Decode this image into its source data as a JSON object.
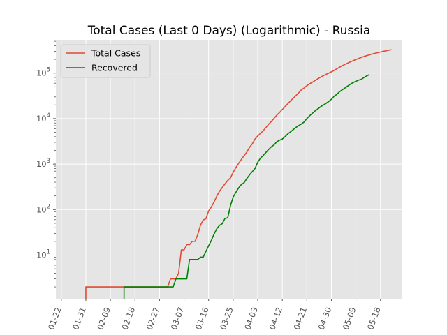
{
  "chart_data": {
    "type": "line",
    "title": "Total Cases (Last 0 Days) (Logarithmic) - Russia",
    "xlabel": "",
    "ylabel": "",
    "yscale": "log",
    "ylim": [
      1.1,
      520000
    ],
    "xlim": [
      "2020-01-20",
      "2020-05-26"
    ],
    "grid": true,
    "legend_position": "top-left",
    "x_ticks": [
      "01-22",
      "01-31",
      "02-09",
      "02-18",
      "02-27",
      "03-07",
      "03-16",
      "03-25",
      "04-03",
      "04-12",
      "04-21",
      "04-30",
      "05-09",
      "05-18"
    ],
    "x_tick_dates": [
      "2020-01-22",
      "2020-01-31",
      "2020-02-09",
      "2020-02-18",
      "2020-02-27",
      "2020-03-07",
      "2020-03-16",
      "2020-03-25",
      "2020-04-03",
      "2020-04-12",
      "2020-04-21",
      "2020-04-30",
      "2020-05-09",
      "2020-05-18"
    ],
    "y_ticks": [
      {
        "base": "10",
        "exp": "1",
        "value": 10
      },
      {
        "base": "10",
        "exp": "2",
        "value": 100
      },
      {
        "base": "10",
        "exp": "3",
        "value": 1000
      },
      {
        "base": "10",
        "exp": "4",
        "value": 10000
      },
      {
        "base": "10",
        "exp": "5",
        "value": 100000
      }
    ],
    "series": [
      {
        "name": "Total Cases",
        "color": "#e24a33",
        "points": [
          [
            "2020-01-31",
            1
          ],
          [
            "2020-01-31",
            2
          ],
          [
            "2020-03-01",
            2
          ],
          [
            "2020-03-02",
            3
          ],
          [
            "2020-03-04",
            3
          ],
          [
            "2020-03-05",
            4
          ],
          [
            "2020-03-06",
            13
          ],
          [
            "2020-03-07",
            13
          ],
          [
            "2020-03-08",
            17
          ],
          [
            "2020-03-09",
            17
          ],
          [
            "2020-03-10",
            20
          ],
          [
            "2020-03-11",
            20
          ],
          [
            "2020-03-12",
            28
          ],
          [
            "2020-03-13",
            45
          ],
          [
            "2020-03-14",
            59
          ],
          [
            "2020-03-15",
            63
          ],
          [
            "2020-03-16",
            93
          ],
          [
            "2020-03-17",
            114
          ],
          [
            "2020-03-18",
            147
          ],
          [
            "2020-03-19",
            199
          ],
          [
            "2020-03-20",
            253
          ],
          [
            "2020-03-21",
            306
          ],
          [
            "2020-03-22",
            367
          ],
          [
            "2020-03-23",
            438
          ],
          [
            "2020-03-24",
            495
          ],
          [
            "2020-03-25",
            658
          ],
          [
            "2020-03-26",
            840
          ],
          [
            "2020-03-27",
            1036
          ],
          [
            "2020-03-28",
            1264
          ],
          [
            "2020-03-29",
            1534
          ],
          [
            "2020-03-30",
            1836
          ],
          [
            "2020-03-31",
            2337
          ],
          [
            "2020-04-01",
            2777
          ],
          [
            "2020-04-02",
            3548
          ],
          [
            "2020-04-03",
            4149
          ],
          [
            "2020-04-04",
            4731
          ],
          [
            "2020-04-05",
            5389
          ],
          [
            "2020-04-06",
            6343
          ],
          [
            "2020-04-07",
            7497
          ],
          [
            "2020-04-08",
            8672
          ],
          [
            "2020-04-09",
            10131
          ],
          [
            "2020-04-10",
            11917
          ],
          [
            "2020-04-11",
            13584
          ],
          [
            "2020-04-12",
            15770
          ],
          [
            "2020-04-13",
            18328
          ],
          [
            "2020-04-14",
            21102
          ],
          [
            "2020-04-15",
            24490
          ],
          [
            "2020-04-16",
            27938
          ],
          [
            "2020-04-17",
            32008
          ],
          [
            "2020-04-18",
            36793
          ],
          [
            "2020-04-19",
            42853
          ],
          [
            "2020-04-20",
            47121
          ],
          [
            "2020-04-21",
            52763
          ],
          [
            "2020-04-22",
            57999
          ],
          [
            "2020-04-23",
            62773
          ],
          [
            "2020-04-24",
            68622
          ],
          [
            "2020-04-25",
            74588
          ],
          [
            "2020-04-26",
            80949
          ],
          [
            "2020-04-27",
            87147
          ],
          [
            "2020-04-28",
            93558
          ],
          [
            "2020-04-29",
            99399
          ],
          [
            "2020-04-30",
            106498
          ],
          [
            "2020-05-01",
            114431
          ],
          [
            "2020-05-02",
            124054
          ],
          [
            "2020-05-03",
            134687
          ],
          [
            "2020-05-04",
            145268
          ],
          [
            "2020-05-05",
            155370
          ],
          [
            "2020-05-06",
            165929
          ],
          [
            "2020-05-07",
            177160
          ],
          [
            "2020-05-08",
            187859
          ],
          [
            "2020-05-09",
            198676
          ],
          [
            "2020-05-10",
            209688
          ],
          [
            "2020-05-11",
            221344
          ],
          [
            "2020-05-12",
            232243
          ],
          [
            "2020-05-13",
            242271
          ],
          [
            "2020-05-14",
            252245
          ],
          [
            "2020-05-15",
            262843
          ],
          [
            "2020-05-16",
            272043
          ],
          [
            "2020-05-17",
            281752
          ],
          [
            "2020-05-18",
            290678
          ],
          [
            "2020-05-19",
            299941
          ],
          [
            "2020-05-20",
            308705
          ],
          [
            "2020-05-21",
            317554
          ],
          [
            "2020-05-22",
            326448
          ]
        ]
      },
      {
        "name": "Recovered",
        "color": "#008000",
        "points": [
          [
            "2020-02-14",
            1
          ],
          [
            "2020-02-14",
            2
          ],
          [
            "2020-03-03",
            2
          ],
          [
            "2020-03-04",
            3
          ],
          [
            "2020-03-08",
            3
          ],
          [
            "2020-03-09",
            8
          ],
          [
            "2020-03-12",
            8
          ],
          [
            "2020-03-13",
            9
          ],
          [
            "2020-03-14",
            9
          ],
          [
            "2020-03-15",
            12
          ],
          [
            "2020-03-16",
            16
          ],
          [
            "2020-03-17",
            21
          ],
          [
            "2020-03-18",
            29
          ],
          [
            "2020-03-19",
            38
          ],
          [
            "2020-03-20",
            45
          ],
          [
            "2020-03-21",
            49
          ],
          [
            "2020-03-22",
            64
          ],
          [
            "2020-03-23",
            66
          ],
          [
            "2020-03-24",
            121
          ],
          [
            "2020-03-25",
            190
          ],
          [
            "2020-03-26",
            240
          ],
          [
            "2020-03-27",
            300
          ],
          [
            "2020-03-28",
            355
          ],
          [
            "2020-03-29",
            390
          ],
          [
            "2020-03-30",
            480
          ],
          [
            "2020-03-31",
            580
          ],
          [
            "2020-04-01",
            680
          ],
          [
            "2020-04-02",
            800
          ],
          [
            "2020-04-03",
            1100
          ],
          [
            "2020-04-04",
            1350
          ],
          [
            "2020-04-05",
            1550
          ],
          [
            "2020-04-06",
            1800
          ],
          [
            "2020-04-07",
            2100
          ],
          [
            "2020-04-08",
            2400
          ],
          [
            "2020-04-09",
            2650
          ],
          [
            "2020-04-10",
            3100
          ],
          [
            "2020-04-11",
            3350
          ],
          [
            "2020-04-12",
            3550
          ],
          [
            "2020-04-13",
            4000
          ],
          [
            "2020-04-14",
            4600
          ],
          [
            "2020-04-15",
            5100
          ],
          [
            "2020-04-16",
            5700
          ],
          [
            "2020-04-17",
            6400
          ],
          [
            "2020-04-18",
            7000
          ],
          [
            "2020-04-19",
            7600
          ],
          [
            "2020-04-20",
            8400
          ],
          [
            "2020-04-21",
            10000
          ],
          [
            "2020-04-22",
            11500
          ],
          [
            "2020-04-23",
            13000
          ],
          [
            "2020-04-24",
            14700
          ],
          [
            "2020-04-25",
            16300
          ],
          [
            "2020-04-26",
            18100
          ],
          [
            "2020-04-27",
            19800
          ],
          [
            "2020-04-28",
            21500
          ],
          [
            "2020-04-29",
            23700
          ],
          [
            "2020-04-30",
            26500
          ],
          [
            "2020-05-01",
            31000
          ],
          [
            "2020-05-02",
            34000
          ],
          [
            "2020-05-03",
            39000
          ],
          [
            "2020-05-04",
            43000
          ],
          [
            "2020-05-05",
            47000
          ],
          [
            "2020-05-06",
            52000
          ],
          [
            "2020-05-07",
            57000
          ],
          [
            "2020-05-08",
            62000
          ],
          [
            "2020-05-09",
            66000
          ],
          [
            "2020-05-10",
            70000
          ],
          [
            "2020-05-11",
            73000
          ],
          [
            "2020-05-12",
            80000
          ],
          [
            "2020-05-13",
            87000
          ],
          [
            "2020-05-14",
            93000
          ]
        ]
      }
    ]
  }
}
